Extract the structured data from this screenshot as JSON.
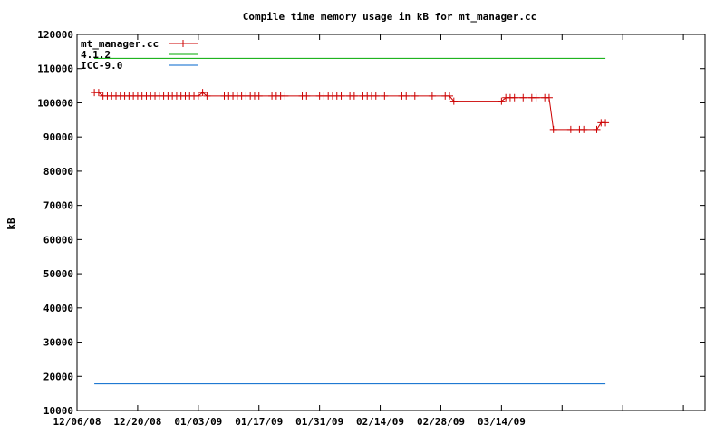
{
  "chart_data": {
    "type": "line",
    "title": "Compile time memory usage in kB for mt_manager.cc",
    "xlabel": "",
    "ylabel": "kB",
    "ylim": [
      10000,
      120000
    ],
    "y_ticks": [
      10000,
      20000,
      30000,
      40000,
      50000,
      60000,
      70000,
      80000,
      90000,
      100000,
      110000,
      120000
    ],
    "y_tick_labels": [
      "10000",
      "20000",
      "30000",
      "40000",
      "50000",
      "60000",
      "70000",
      "80000",
      "90000",
      "100000",
      "110000",
      "120000"
    ],
    "xlim": [
      "2008-12-06",
      "2009-04-30"
    ],
    "x_tick_labels": [
      {
        "date": "2008-12-06",
        "label": "12/06/08"
      },
      {
        "date": "2008-12-20",
        "label": "12/20/08"
      },
      {
        "date": "2009-01-03",
        "label": "01/03/09"
      },
      {
        "date": "2009-01-17",
        "label": "01/17/09"
      },
      {
        "date": "2009-01-31",
        "label": "01/31/09"
      },
      {
        "date": "2009-02-14",
        "label": "02/14/09"
      },
      {
        "date": "2009-02-28",
        "label": "02/28/09"
      },
      {
        "date": "2009-03-14",
        "label": "03/14/09"
      },
      {
        "date": "2009-03-28",
        "label": ""
      },
      {
        "date": "2009-04-11",
        "label": ""
      },
      {
        "date": "2009-04-25",
        "label": ""
      }
    ],
    "grid": false,
    "legend_position": "top-left",
    "series": [
      {
        "name": "mt_manager.cc",
        "color": "#cc0000",
        "marker": "plus",
        "points": [
          [
            "2008-12-10",
            103000
          ],
          [
            "2008-12-11",
            103000
          ],
          [
            "2008-12-12",
            102000
          ],
          [
            "2008-12-13",
            102000
          ],
          [
            "2008-12-14",
            102000
          ],
          [
            "2008-12-15",
            102000
          ],
          [
            "2008-12-16",
            102000
          ],
          [
            "2008-12-17",
            102000
          ],
          [
            "2008-12-18",
            102000
          ],
          [
            "2008-12-19",
            102000
          ],
          [
            "2008-12-20",
            102000
          ],
          [
            "2008-12-21",
            102000
          ],
          [
            "2008-12-22",
            102000
          ],
          [
            "2008-12-23",
            102000
          ],
          [
            "2008-12-24",
            102000
          ],
          [
            "2008-12-25",
            102000
          ],
          [
            "2008-12-26",
            102000
          ],
          [
            "2008-12-27",
            102000
          ],
          [
            "2008-12-28",
            102000
          ],
          [
            "2008-12-29",
            102000
          ],
          [
            "2008-12-30",
            102000
          ],
          [
            "2008-12-31",
            102000
          ],
          [
            "2009-01-01",
            102000
          ],
          [
            "2009-01-02",
            102000
          ],
          [
            "2009-01-03",
            102000
          ],
          [
            "2009-01-04",
            103000
          ],
          [
            "2009-01-05",
            102000
          ],
          [
            "2009-01-09",
            102000
          ],
          [
            "2009-01-10",
            102000
          ],
          [
            "2009-01-11",
            102000
          ],
          [
            "2009-01-12",
            102000
          ],
          [
            "2009-01-13",
            102000
          ],
          [
            "2009-01-14",
            102000
          ],
          [
            "2009-01-15",
            102000
          ],
          [
            "2009-01-16",
            102000
          ],
          [
            "2009-01-17",
            102000
          ],
          [
            "2009-01-20",
            102000
          ],
          [
            "2009-01-21",
            102000
          ],
          [
            "2009-01-22",
            102000
          ],
          [
            "2009-01-23",
            102000
          ],
          [
            "2009-01-27",
            102000
          ],
          [
            "2009-01-28",
            102000
          ],
          [
            "2009-01-31",
            102000
          ],
          [
            "2009-02-01",
            102000
          ],
          [
            "2009-02-02",
            102000
          ],
          [
            "2009-02-03",
            102000
          ],
          [
            "2009-02-04",
            102000
          ],
          [
            "2009-02-05",
            102000
          ],
          [
            "2009-02-07",
            102000
          ],
          [
            "2009-02-08",
            102000
          ],
          [
            "2009-02-10",
            102000
          ],
          [
            "2009-02-11",
            102000
          ],
          [
            "2009-02-12",
            102000
          ],
          [
            "2009-02-13",
            102000
          ],
          [
            "2009-02-15",
            102000
          ],
          [
            "2009-02-19",
            102000
          ],
          [
            "2009-02-20",
            102000
          ],
          [
            "2009-02-22",
            102000
          ],
          [
            "2009-02-26",
            102000
          ],
          [
            "2009-03-01",
            102000
          ],
          [
            "2009-03-02",
            102000
          ],
          [
            "2009-03-03",
            100500
          ],
          [
            "2009-03-14",
            100500
          ],
          [
            "2009-03-15",
            101500
          ],
          [
            "2009-03-16",
            101500
          ],
          [
            "2009-03-17",
            101500
          ],
          [
            "2009-03-19",
            101500
          ],
          [
            "2009-03-21",
            101500
          ],
          [
            "2009-03-22",
            101500
          ],
          [
            "2009-03-24",
            101500
          ],
          [
            "2009-03-25",
            101500
          ],
          [
            "2009-03-26",
            92200
          ],
          [
            "2009-03-30",
            92200
          ],
          [
            "2009-04-01",
            92200
          ],
          [
            "2009-04-02",
            92200
          ],
          [
            "2009-04-05",
            92200
          ],
          [
            "2009-04-06",
            94200
          ],
          [
            "2009-04-07",
            94200
          ]
        ]
      },
      {
        "name": "4.1.2",
        "color": "#00aa00",
        "marker": "none",
        "points": [
          [
            "2008-12-10",
            113000
          ],
          [
            "2009-04-07",
            113000
          ]
        ]
      },
      {
        "name": "ICC-9.0",
        "color": "#0066cc",
        "marker": "none",
        "points": [
          [
            "2008-12-10",
            17800
          ],
          [
            "2009-04-07",
            17800
          ]
        ]
      }
    ]
  }
}
